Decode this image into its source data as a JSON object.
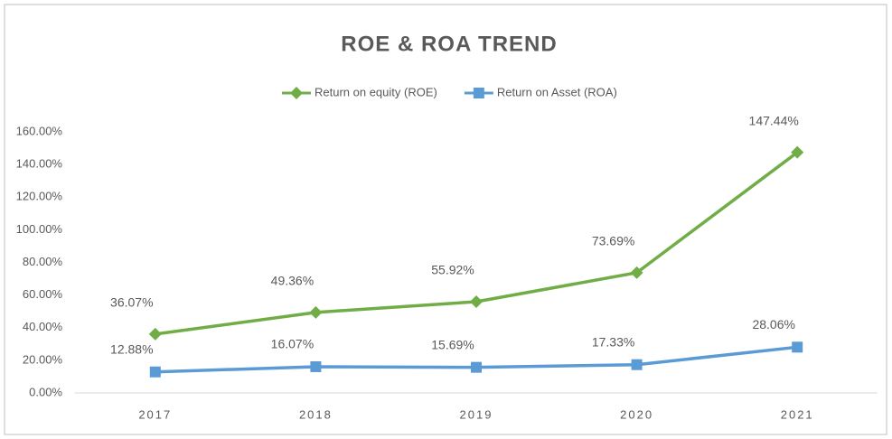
{
  "chart_data": {
    "type": "line",
    "title": "ROE & ROA TREND",
    "categories": [
      "2017",
      "2018",
      "2019",
      "2020",
      "2021"
    ],
    "series": [
      {
        "name": "Return on equity  (ROE)",
        "color": "#70ad47",
        "marker": "diamond",
        "values": [
          36.07,
          49.36,
          55.92,
          73.69,
          147.44
        ],
        "value_labels": [
          "36.07%",
          "49.36%",
          "55.92%",
          "73.69%",
          "147.44%"
        ]
      },
      {
        "name": "Return on Asset (ROA)",
        "color": "#5b9bd5",
        "marker": "square",
        "values": [
          12.88,
          16.07,
          15.69,
          17.33,
          28.06
        ],
        "value_labels": [
          "12.88%",
          "16.07%",
          "15.69%",
          "17.33%",
          "28.06%"
        ]
      }
    ],
    "ylim": [
      0,
      160
    ],
    "yticks": [
      {
        "value": 0,
        "label": "0.00%"
      },
      {
        "value": 20,
        "label": "20.00%"
      },
      {
        "value": 40,
        "label": "40.00%"
      },
      {
        "value": 60,
        "label": "60.00%"
      },
      {
        "value": 80,
        "label": "80.00%"
      },
      {
        "value": 100,
        "label": "100.00%"
      },
      {
        "value": 120,
        "label": "120.00%"
      },
      {
        "value": 140,
        "label": "140.00%"
      },
      {
        "value": 160,
        "label": "160.00%"
      }
    ],
    "grid": false,
    "legend": "top"
  }
}
